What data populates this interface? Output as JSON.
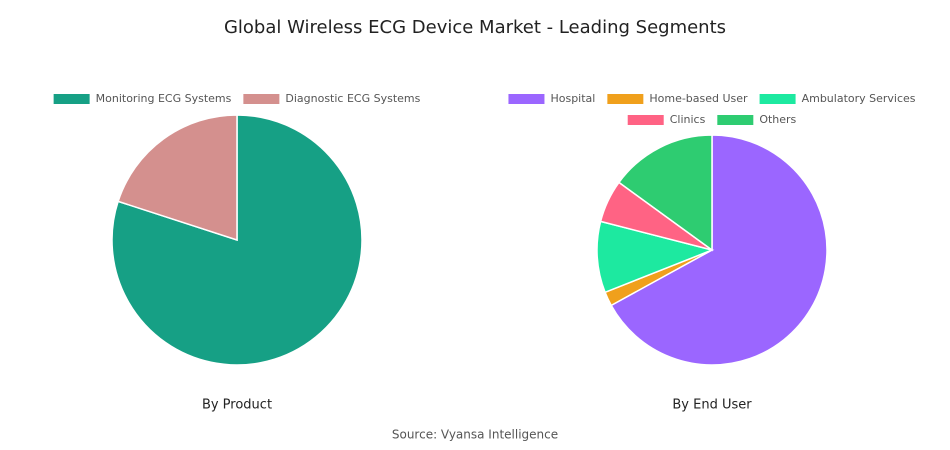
{
  "title": "Global Wireless ECG Device Market - Leading Segments",
  "source": "Source: Vyansa Intelligence",
  "chart_data": [
    {
      "type": "pie",
      "label": "By Product",
      "categories": [
        "Monitoring ECG Systems",
        "Diagnostic ECG Systems"
      ],
      "values": [
        80,
        20
      ],
      "colors": [
        "#16a085",
        "#d4908e"
      ]
    },
    {
      "type": "pie",
      "label": "By End User",
      "categories": [
        "Hospital",
        "Home-based User",
        "Ambulatory Services",
        "Clinics",
        "Others"
      ],
      "values": [
        67,
        2,
        10,
        6,
        15
      ],
      "colors": [
        "#9b66ff",
        "#f0a01c",
        "#1de9a0",
        "#ff6384",
        "#2ecc71"
      ]
    }
  ]
}
